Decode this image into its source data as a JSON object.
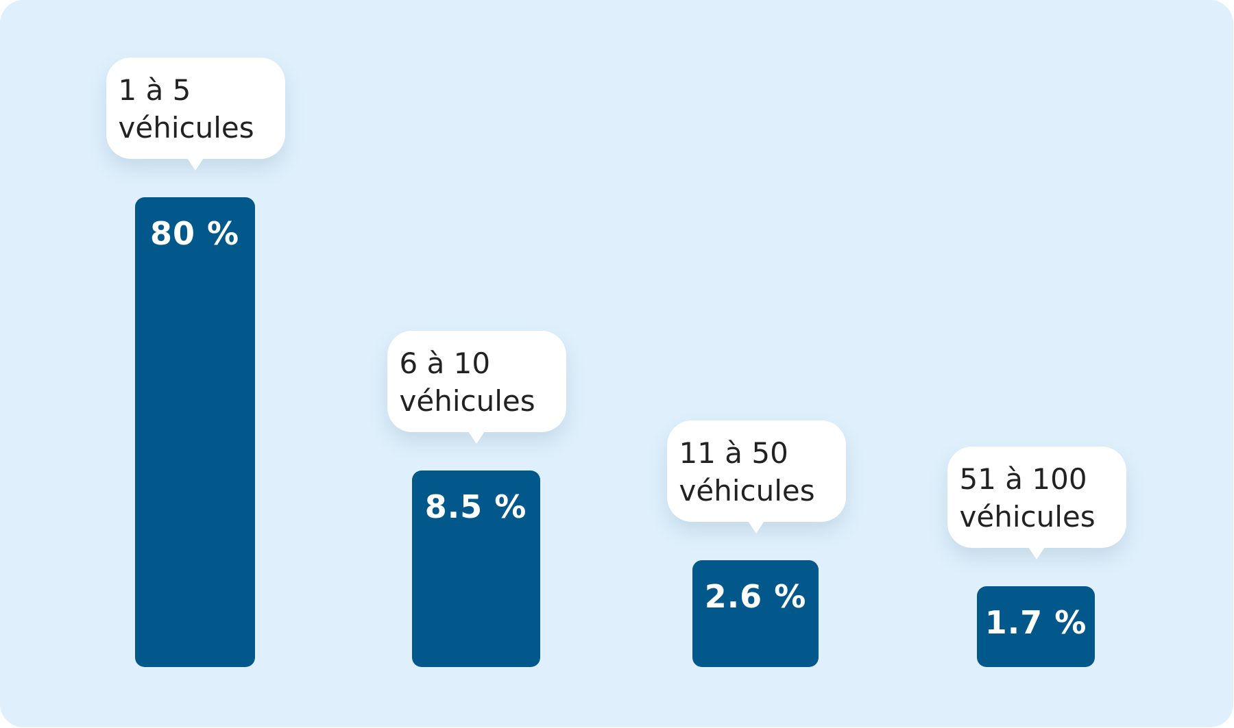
{
  "chart_data": {
    "type": "bar",
    "title": "",
    "xlabel": "",
    "ylabel": "",
    "ylim": [
      0,
      80
    ],
    "categories": [
      "1 à 5 véhicules",
      "6 à 10 véhicules",
      "11 à 50 véhicules",
      "51 à 100 véhicules"
    ],
    "category_lines": [
      [
        "1 à 5",
        "véhicules"
      ],
      [
        "6 à 10",
        "véhicules"
      ],
      [
        "11 à 50",
        "véhicules"
      ],
      [
        "51 à 100",
        "véhicules"
      ]
    ],
    "values": [
      80,
      8.5,
      2.6,
      1.7
    ],
    "value_labels": [
      "80 %",
      "8.5 %",
      "2.6 %",
      "1.7 %"
    ],
    "grid": false,
    "legend": "none"
  },
  "colors": {
    "background": "#dff0fc",
    "bar": "#02578b",
    "bar_text": "#ffffff",
    "label_bubble": "#ffffff",
    "label_text": "#222222"
  }
}
